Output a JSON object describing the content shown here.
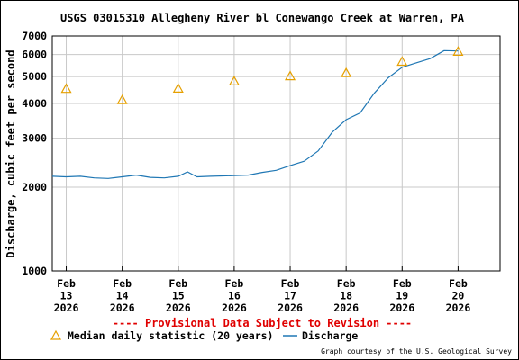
{
  "chart_data": {
    "type": "line",
    "title": "USGS 03015310 Allegheny River bl Conewango Creek at Warren, PA",
    "ylabel": "Discharge, cubic feet per second",
    "xlabel": "",
    "y_scale": "log",
    "ylim": [
      1000,
      7000
    ],
    "xlim": [
      "2026-02-12T18:00",
      "2026-02-20T18:00"
    ],
    "grid": true,
    "y_ticks": [
      1000,
      2000,
      3000,
      4000,
      5000,
      6000,
      7000
    ],
    "x_ticks": [
      {
        "value": "2026-02-13",
        "lines": [
          "Feb",
          "13",
          "2026"
        ]
      },
      {
        "value": "2026-02-14",
        "lines": [
          "Feb",
          "14",
          "2026"
        ]
      },
      {
        "value": "2026-02-15",
        "lines": [
          "Feb",
          "15",
          "2026"
        ]
      },
      {
        "value": "2026-02-16",
        "lines": [
          "Feb",
          "16",
          "2026"
        ]
      },
      {
        "value": "2026-02-17",
        "lines": [
          "Feb",
          "17",
          "2026"
        ]
      },
      {
        "value": "2026-02-18",
        "lines": [
          "Feb",
          "18",
          "2026"
        ]
      },
      {
        "value": "2026-02-19",
        "lines": [
          "Feb",
          "19",
          "2026"
        ]
      },
      {
        "value": "2026-02-20",
        "lines": [
          "Feb",
          "20",
          "2026"
        ]
      }
    ],
    "series": [
      {
        "name": "Discharge",
        "color": "#1f77b4",
        "marker": "line",
        "points": [
          {
            "x": "2026-02-12T18:00",
            "y": 2190
          },
          {
            "x": "2026-02-13T00:00",
            "y": 2180
          },
          {
            "x": "2026-02-13T06:00",
            "y": 2190
          },
          {
            "x": "2026-02-13T12:00",
            "y": 2160
          },
          {
            "x": "2026-02-13T18:00",
            "y": 2150
          },
          {
            "x": "2026-02-14T00:00",
            "y": 2180
          },
          {
            "x": "2026-02-14T06:00",
            "y": 2210
          },
          {
            "x": "2026-02-14T12:00",
            "y": 2170
          },
          {
            "x": "2026-02-14T18:00",
            "y": 2160
          },
          {
            "x": "2026-02-15T00:00",
            "y": 2190
          },
          {
            "x": "2026-02-15T04:00",
            "y": 2270
          },
          {
            "x": "2026-02-15T08:00",
            "y": 2180
          },
          {
            "x": "2026-02-15T14:00",
            "y": 2190
          },
          {
            "x": "2026-02-16T00:00",
            "y": 2200
          },
          {
            "x": "2026-02-16T06:00",
            "y": 2210
          },
          {
            "x": "2026-02-16T12:00",
            "y": 2260
          },
          {
            "x": "2026-02-16T18:00",
            "y": 2300
          },
          {
            "x": "2026-02-17T00:00",
            "y": 2390
          },
          {
            "x": "2026-02-17T06:00",
            "y": 2480
          },
          {
            "x": "2026-02-17T12:00",
            "y": 2700
          },
          {
            "x": "2026-02-17T18:00",
            "y": 3150
          },
          {
            "x": "2026-02-18T00:00",
            "y": 3500
          },
          {
            "x": "2026-02-18T06:00",
            "y": 3700
          },
          {
            "x": "2026-02-18T12:00",
            "y": 4350
          },
          {
            "x": "2026-02-18T18:00",
            "y": 4950
          },
          {
            "x": "2026-02-19T00:00",
            "y": 5400
          },
          {
            "x": "2026-02-19T06:00",
            "y": 5600
          },
          {
            "x": "2026-02-19T12:00",
            "y": 5800
          },
          {
            "x": "2026-02-19T18:00",
            "y": 6200
          },
          {
            "x": "2026-02-20T00:00",
            "y": 6180
          }
        ]
      },
      {
        "name": "Median daily statistic (20 years)",
        "color": "#e6a000",
        "marker": "triangle",
        "points": [
          {
            "x": "2026-02-13",
            "y": 4520
          },
          {
            "x": "2026-02-14",
            "y": 4120
          },
          {
            "x": "2026-02-15",
            "y": 4530
          },
          {
            "x": "2026-02-16",
            "y": 4810
          },
          {
            "x": "2026-02-17",
            "y": 5020
          },
          {
            "x": "2026-02-18",
            "y": 5150
          },
          {
            "x": "2026-02-19",
            "y": 5660
          },
          {
            "x": "2026-02-20",
            "y": 6150
          }
        ]
      }
    ],
    "legend": [
      {
        "label": "Median daily statistic (20 years)",
        "marker": "triangle",
        "color": "#e6a000"
      },
      {
        "label": "Discharge",
        "marker": "line",
        "color": "#1f77b4"
      }
    ],
    "annotation": "---- Provisional Data Subject to Revision ----",
    "annotation_color": "#e00000",
    "credit": "Graph courtesy of the U.S. Geological Survey"
  }
}
